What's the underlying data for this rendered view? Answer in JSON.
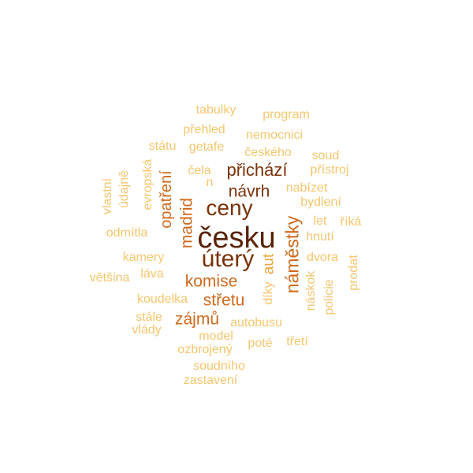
{
  "palette": {
    "darkest": "#5a2206",
    "dark": "#7a3208",
    "mid": "#d0691c",
    "light": "#e8a63a",
    "pale": "#f5c66e"
  },
  "words": [
    {
      "text": "česku",
      "tone": "darkest",
      "rotated": false
    },
    {
      "text": "úterý",
      "tone": "dark",
      "rotated": false
    },
    {
      "text": "ceny",
      "tone": "dark",
      "rotated": false
    },
    {
      "text": "přichází",
      "tone": "dark",
      "rotated": false
    },
    {
      "text": "návrh",
      "tone": "dark",
      "rotated": false
    },
    {
      "text": "náměstky",
      "tone": "mid",
      "rotated": true
    },
    {
      "text": "madrid",
      "tone": "mid",
      "rotated": true
    },
    {
      "text": "opatření",
      "tone": "mid",
      "rotated": true
    },
    {
      "text": "komise",
      "tone": "mid",
      "rotated": false
    },
    {
      "text": "střetu",
      "tone": "mid",
      "rotated": false
    },
    {
      "text": "zájmů",
      "tone": "mid",
      "rotated": false
    },
    {
      "text": "aut",
      "tone": "light",
      "rotated": true
    },
    {
      "text": "tabulky",
      "tone": "pale",
      "rotated": false
    },
    {
      "text": "program",
      "tone": "pale",
      "rotated": false
    },
    {
      "text": "přehled",
      "tone": "pale",
      "rotated": false
    },
    {
      "text": "nemocnici",
      "tone": "pale",
      "rotated": false
    },
    {
      "text": "státu",
      "tone": "pale",
      "rotated": false
    },
    {
      "text": "getafe",
      "tone": "pale",
      "rotated": false
    },
    {
      "text": "českého",
      "tone": "pale",
      "rotated": false
    },
    {
      "text": "soud",
      "tone": "pale",
      "rotated": false
    },
    {
      "text": "evropská",
      "tone": "pale",
      "rotated": true
    },
    {
      "text": "čela",
      "tone": "pale",
      "rotated": false
    },
    {
      "text": "n",
      "tone": "pale",
      "rotated": false
    },
    {
      "text": "přístroj",
      "tone": "pale",
      "rotated": false
    },
    {
      "text": "vlastní",
      "tone": "pale",
      "rotated": true
    },
    {
      "text": "údajně",
      "tone": "pale",
      "rotated": true
    },
    {
      "text": "nabízet",
      "tone": "pale",
      "rotated": false
    },
    {
      "text": "bydlení",
      "tone": "pale",
      "rotated": false
    },
    {
      "text": "let",
      "tone": "pale",
      "rotated": false
    },
    {
      "text": "říká",
      "tone": "pale",
      "rotated": false
    },
    {
      "text": "odmítla",
      "tone": "pale",
      "rotated": false
    },
    {
      "text": "hnutí",
      "tone": "pale",
      "rotated": false
    },
    {
      "text": "kamery",
      "tone": "pale",
      "rotated": false
    },
    {
      "text": "dvora",
      "tone": "pale",
      "rotated": false
    },
    {
      "text": "prodat",
      "tone": "pale",
      "rotated": true
    },
    {
      "text": "většina",
      "tone": "pale",
      "rotated": false
    },
    {
      "text": "láva",
      "tone": "pale",
      "rotated": false
    },
    {
      "text": "náskok",
      "tone": "pale",
      "rotated": true
    },
    {
      "text": "díky",
      "tone": "pale",
      "rotated": true
    },
    {
      "text": "policie",
      "tone": "pale",
      "rotated": true
    },
    {
      "text": "koudelka",
      "tone": "pale",
      "rotated": false
    },
    {
      "text": "stále",
      "tone": "pale",
      "rotated": false
    },
    {
      "text": "autobusu",
      "tone": "pale",
      "rotated": false
    },
    {
      "text": "vlády",
      "tone": "pale",
      "rotated": false
    },
    {
      "text": "model",
      "tone": "pale",
      "rotated": false
    },
    {
      "text": "ozbrojený",
      "tone": "pale",
      "rotated": false
    },
    {
      "text": "poté",
      "tone": "pale",
      "rotated": false
    },
    {
      "text": "třetí",
      "tone": "pale",
      "rotated": false
    },
    {
      "text": "soudního",
      "tone": "pale",
      "rotated": false
    },
    {
      "text": "zastavení",
      "tone": "pale",
      "rotated": false
    }
  ]
}
